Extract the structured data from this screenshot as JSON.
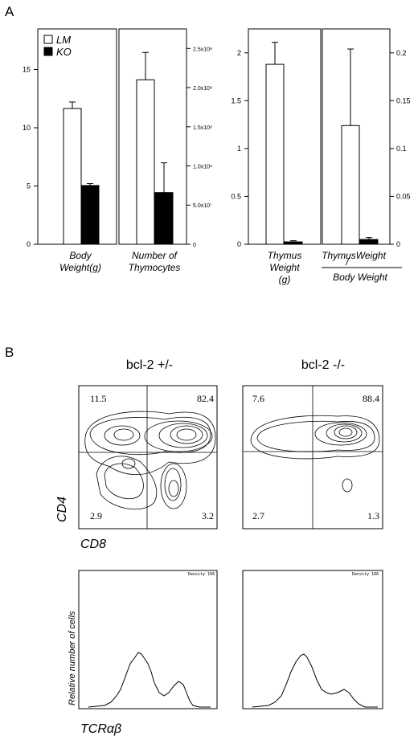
{
  "panel_a": {
    "letter": "A",
    "legend": {
      "lm": "LM",
      "ko": "KO"
    },
    "body_weight_ticks": [
      "0",
      "5",
      "10",
      "15"
    ],
    "thymocyte_ticks": [
      "0",
      "5.0x10⁷",
      "1.0x10⁸",
      "1.5x10⁸",
      "2.0x10⁸",
      "2.5x10⁸"
    ],
    "thymus_weight_ticks": [
      "0",
      "0.5",
      "1",
      "1.5",
      "2"
    ],
    "ratio_ticks": [
      "0",
      "0.05",
      "0.1",
      "0.15",
      "0.2"
    ],
    "labels": {
      "body_weight_1": "Body",
      "body_weight_2": "Weight(g)",
      "thymocytes_1": "Number of",
      "thymocytes_2": "Thymocytes",
      "thymus_1": "Thymus",
      "thymus_2": "Weight",
      "thymus_3": "(g)",
      "ratio_num": "ThymusWeight",
      "ratio_slash": "/",
      "ratio_den": "Body Weight"
    }
  },
  "panel_b": {
    "letter": "B",
    "titles": {
      "het": "bcl-2 +/-",
      "ko": "bcl-2 -/-"
    },
    "het_quadrants": {
      "ul": "11.5",
      "ur": "82.4",
      "ll": "2.9",
      "lr": "3.2"
    },
    "ko_quadrants": {
      "ul": "7.6",
      "ur": "88.4",
      "ll": "2.7",
      "lr": "1.3"
    },
    "axes": {
      "cd4": "CD4",
      "cd8": "CD8",
      "hist_y": "Relative number of cells",
      "hist_x": "TCRαβ"
    },
    "density_label": "Density 166"
  },
  "chart_data": [
    {
      "type": "bar",
      "title": "",
      "categories": [
        "Body Weight(g)"
      ],
      "series": [
        {
          "name": "LM",
          "values": [
            10.4
          ],
          "error": [
            0.5
          ]
        },
        {
          "name": "KO",
          "values": [
            4.5
          ],
          "error": [
            0.15
          ]
        }
      ],
      "ylim": [
        0,
        16.5
      ],
      "yticks": [
        0,
        5,
        10,
        15
      ],
      "colors": {
        "LM": "#ffffff",
        "KO": "#000000"
      },
      "legend": "top-left"
    },
    {
      "type": "bar",
      "title": "",
      "categories": [
        "Number of Thymocytes"
      ],
      "series": [
        {
          "name": "LM",
          "values": [
            210000000
          ],
          "error": [
            35000000
          ]
        },
        {
          "name": "KO",
          "values": [
            66000000
          ],
          "error": [
            38000000
          ]
        }
      ],
      "ylim": [
        0,
        275000000
      ],
      "yticks": [
        0,
        50000000,
        100000000,
        150000000,
        200000000,
        250000000
      ]
    },
    {
      "type": "bar",
      "title": "",
      "categories": [
        "Thymus Weight (g)"
      ],
      "series": [
        {
          "name": "LM",
          "values": [
            1.88
          ],
          "error": [
            0.23
          ]
        },
        {
          "name": "KO",
          "values": [
            0.025
          ],
          "error": [
            0.012
          ]
        }
      ],
      "ylim": [
        0,
        2.25
      ],
      "yticks": [
        0,
        0.5,
        1,
        1.5,
        2
      ]
    },
    {
      "type": "bar",
      "title": "",
      "categories": [
        "ThymusWeight / Body Weight"
      ],
      "series": [
        {
          "name": "LM",
          "values": [
            0.124
          ],
          "error": [
            0.08
          ]
        },
        {
          "name": "KO",
          "values": [
            0.005
          ],
          "error": [
            0.002
          ]
        }
      ],
      "ylim": [
        0,
        0.225
      ],
      "yticks": [
        0,
        0.05,
        0.1,
        0.15,
        0.2
      ]
    }
  ]
}
